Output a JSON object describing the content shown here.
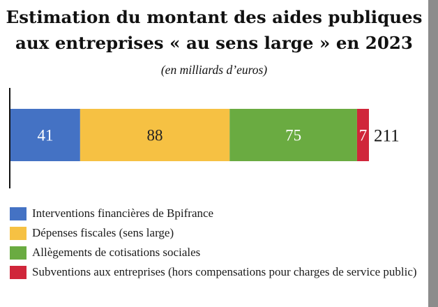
{
  "title_line1": "Estimation du montant des aides publiques",
  "title_line2": "aux entreprises « au sens large » en 2023",
  "subtitle": "(en milliards d’euros)",
  "chart_data": {
    "type": "bar",
    "orientation": "horizontal",
    "stacked": true,
    "categories": [
      ""
    ],
    "series": [
      {
        "name": "Interventions financières de Bpifrance",
        "values": [
          41
        ],
        "color": "#4472c4"
      },
      {
        "name": "Dépenses fiscales (sens large)",
        "values": [
          88
        ],
        "color": "#f6c143"
      },
      {
        "name": "Allègements de cotisations sociales",
        "values": [
          75
        ],
        "color": "#6aab41"
      },
      {
        "name": "Subventions aux entreprises (hors compensations pour charges de service public)",
        "values": [
          7
        ],
        "color": "#d0263a"
      }
    ],
    "data_labels": [
      "41",
      "88",
      "75",
      "7"
    ],
    "total_label": "211",
    "total": 211,
    "legend_position": "bottom",
    "grid": false
  }
}
